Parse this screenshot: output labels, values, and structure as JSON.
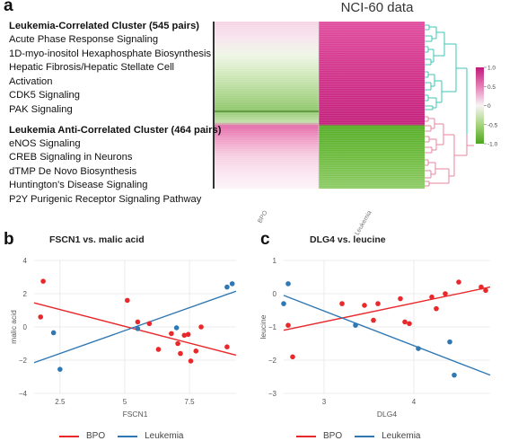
{
  "panel_labels": {
    "a": "a",
    "b": "b",
    "c": "c"
  },
  "heatmap": {
    "title": "NCI-60 data",
    "columns": [
      "BPO",
      "Leukemia"
    ],
    "colorbar_ticks": [
      "1.0",
      "0.5",
      "0",
      "-0.5",
      "-1.0"
    ],
    "colors": {
      "magenta": "#d6338e",
      "green": "#65b832",
      "teal_dendrogram": "#3cc4b6",
      "pink_dendrogram": "#e8869f"
    }
  },
  "clusters": {
    "correlated": {
      "title": "Leukemia-Correlated Cluster (545 pairs)",
      "pathways": [
        "Acute Phase Response Signaling",
        "1D-myo-inositol Hexaphosphate Biosynthesis",
        "Hepatic Fibrosis/Hepatic Stellate Cell",
        "Activation",
        "CDK5 Signaling",
        "PAK Signaling"
      ]
    },
    "anticorrelated": {
      "title": "Leukemia Anti-Correlated Cluster (464 pairs)",
      "pathways": [
        "eNOS Signaling",
        "CREB Signaling in Neurons",
        "dTMP De Novo Biosynthesis",
        "Huntington's Disease Signaling",
        "P2Y Purigenic Receptor Signaling Pathway"
      ]
    }
  },
  "legend": {
    "bpo": "BPO",
    "leukemia": "Leukemia",
    "bpo_color": "#e8282b",
    "leukemia_color": "#2f78b4"
  },
  "chart_data": [
    {
      "type": "scatter",
      "title": "FSCN1 vs. malic acid",
      "xlabel": "FSCN1",
      "ylabel": "malic acid",
      "xlim": [
        1.5,
        9.3
      ],
      "ylim": [
        -4,
        4
      ],
      "xticks": [
        2.5,
        5,
        7.5
      ],
      "xtick_labels": [
        "2.5",
        "5",
        "7.5"
      ],
      "yticks": [
        -4,
        -2,
        0,
        2,
        4
      ],
      "ytick_labels": [
        "−4",
        "−2",
        "0",
        "2",
        "4"
      ],
      "series": [
        {
          "name": "BPO",
          "points": [
            [
              1.75,
              0.6
            ],
            [
              1.85,
              2.75
            ],
            [
              5.1,
              1.6
            ],
            [
              5.5,
              0.3
            ],
            [
              5.95,
              0.2
            ],
            [
              6.3,
              -1.35
            ],
            [
              6.8,
              -0.4
            ],
            [
              7.05,
              -1.0
            ],
            [
              7.15,
              -1.6
            ],
            [
              7.3,
              -0.5
            ],
            [
              7.45,
              -0.45
            ],
            [
              7.55,
              -2.05
            ],
            [
              7.75,
              -1.45
            ],
            [
              7.95,
              0.0
            ],
            [
              8.95,
              -1.2
            ]
          ],
          "fit": [
            [
              1.5,
              1.45
            ],
            [
              9.3,
              -1.7
            ]
          ]
        },
        {
          "name": "Leukemia",
          "points": [
            [
              2.25,
              -0.35
            ],
            [
              2.5,
              -2.55
            ],
            [
              5.5,
              -0.1
            ],
            [
              7.0,
              -0.05
            ],
            [
              8.95,
              2.4
            ],
            [
              9.15,
              2.6
            ]
          ],
          "fit": [
            [
              1.5,
              -2.15
            ],
            [
              9.3,
              2.15
            ]
          ]
        }
      ]
    },
    {
      "type": "scatter",
      "title": "DLG4 vs. leucine",
      "xlabel": "DLG4",
      "ylabel": "leucine",
      "xlim": [
        2.55,
        4.85
      ],
      "ylim": [
        -3,
        1
      ],
      "xticks": [
        3,
        4
      ],
      "xtick_labels": [
        "3",
        "4"
      ],
      "yticks": [
        -3,
        -2,
        -1,
        0,
        1
      ],
      "ytick_labels": [
        "−3",
        "−2",
        "−1",
        "0",
        "1"
      ],
      "series": [
        {
          "name": "BPO",
          "points": [
            [
              2.6,
              -0.95
            ],
            [
              2.65,
              -1.9
            ],
            [
              3.2,
              -0.3
            ],
            [
              3.45,
              -0.35
            ],
            [
              3.55,
              -0.8
            ],
            [
              3.6,
              -0.3
            ],
            [
              3.85,
              -0.15
            ],
            [
              3.9,
              -0.85
            ],
            [
              3.95,
              -0.9
            ],
            [
              4.2,
              -0.1
            ],
            [
              4.25,
              -0.45
            ],
            [
              4.35,
              0.0
            ],
            [
              4.5,
              0.35
            ],
            [
              4.75,
              0.2
            ],
            [
              4.8,
              0.1
            ]
          ],
          "fit": [
            [
              2.55,
              -1.1
            ],
            [
              4.85,
              0.2
            ]
          ]
        },
        {
          "name": "Leukemia",
          "points": [
            [
              2.55,
              -0.3
            ],
            [
              2.6,
              0.3
            ],
            [
              3.35,
              -0.95
            ],
            [
              4.05,
              -1.65
            ],
            [
              4.4,
              -1.45
            ],
            [
              4.45,
              -2.45
            ]
          ],
          "fit": [
            [
              2.55,
              -0.05
            ],
            [
              4.85,
              -2.45
            ]
          ]
        }
      ]
    }
  ]
}
